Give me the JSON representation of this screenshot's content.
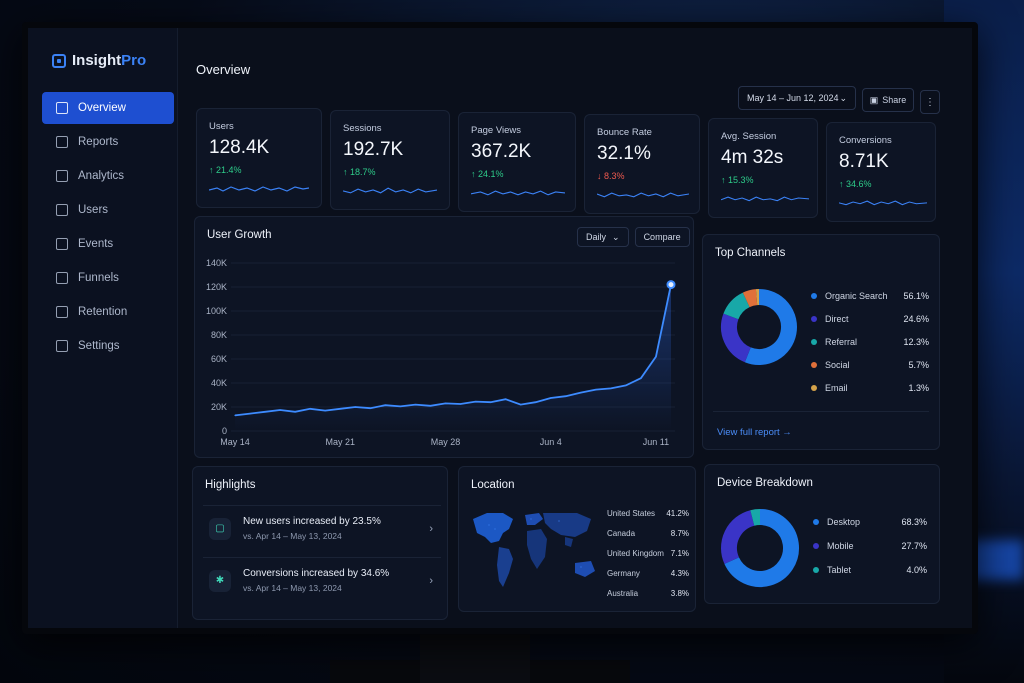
{
  "app": {
    "name_part1": "Insight",
    "name_part2": "Pro"
  },
  "sidebar": {
    "items": [
      {
        "label": "Overview",
        "icon": "home-icon",
        "active": true
      },
      {
        "label": "Reports",
        "icon": "reports-icon"
      },
      {
        "label": "Analytics",
        "icon": "analytics-icon"
      },
      {
        "label": "Users",
        "icon": "users-icon"
      },
      {
        "label": "Events",
        "icon": "events-icon"
      },
      {
        "label": "Funnels",
        "icon": "funnel-icon"
      },
      {
        "label": "Retention",
        "icon": "retention-icon"
      },
      {
        "label": "Settings",
        "icon": "gear-icon"
      }
    ]
  },
  "header": {
    "title": "Overview",
    "date_range": "May 14 – Jun 12, 2024",
    "share_label": "Share"
  },
  "kpis": [
    {
      "label": "Users",
      "value": "128.4K",
      "delta": "↑ 21.4%",
      "trend": "up"
    },
    {
      "label": "Sessions",
      "value": "192.7K",
      "delta": "↑ 18.7%",
      "trend": "up"
    },
    {
      "label": "Page Views",
      "value": "367.2K",
      "delta": "↑ 24.1%",
      "trend": "up"
    },
    {
      "label": "Bounce Rate",
      "value": "32.1%",
      "delta": "↓ 8.3%",
      "trend": "down"
    },
    {
      "label": "Avg. Session",
      "value": "4m 32s",
      "delta": "↑ 15.3%",
      "trend": "up"
    },
    {
      "label": "Conversions",
      "value": "8.71K",
      "delta": "↑ 34.6%",
      "trend": "up"
    }
  ],
  "user_growth": {
    "title": "User Growth",
    "period_select": "Daily",
    "compare_label": "Compare"
  },
  "chart_data": {
    "type": "line",
    "title": "User Growth",
    "y_ticks": [
      "0",
      "20K",
      "40K",
      "60K",
      "80K",
      "100K",
      "120K",
      "140K"
    ],
    "x_ticks": [
      "May 14",
      "May 21",
      "May 28",
      "Jun 4",
      "Jun 11"
    ],
    "ylim": [
      0,
      140000
    ],
    "x": [
      "May 14",
      "May 15",
      "May 16",
      "May 17",
      "May 18",
      "May 19",
      "May 20",
      "May 21",
      "May 22",
      "May 23",
      "May 24",
      "May 25",
      "May 26",
      "May 27",
      "May 28",
      "May 29",
      "May 30",
      "May 31",
      "Jun 1",
      "Jun 2",
      "Jun 3",
      "Jun 4",
      "Jun 5",
      "Jun 6",
      "Jun 7",
      "Jun 8",
      "Jun 9",
      "Jun 10",
      "Jun 11",
      "Jun 12"
    ],
    "series": [
      {
        "values": [
          13000,
          14500,
          16000,
          17500,
          16000,
          18500,
          17000,
          18500,
          20000,
          19000,
          21500,
          20500,
          22000,
          21000,
          23000,
          22500,
          24500,
          24000,
          26500,
          22000,
          24000,
          27500,
          29000,
          32000,
          34500,
          35500,
          38000,
          44000,
          62000,
          122000
        ]
      }
    ]
  },
  "top_channels": {
    "title": "Top Channels",
    "items": [
      {
        "label": "Organic Search",
        "pct": "56.1%",
        "color": "#1f7ae8"
      },
      {
        "label": "Direct",
        "pct": "24.6%",
        "color": "#3a34c7"
      },
      {
        "label": "Referral",
        "pct": "12.3%",
        "color": "#18a8a8"
      },
      {
        "label": "Social",
        "pct": "5.7%",
        "color": "#e0703a"
      },
      {
        "label": "Email",
        "pct": "1.3%",
        "color": "#d4a24a"
      }
    ],
    "link": "View full report →"
  },
  "highlights": {
    "title": "Highlights",
    "items": [
      {
        "title": "New users increased by 23.5%",
        "sub": "vs. Apr 14 – May 13, 2024"
      },
      {
        "title": "Conversions increased by 34.6%",
        "sub": "vs. Apr 14 – May 13, 2024"
      }
    ]
  },
  "location": {
    "title": "Location",
    "items": [
      {
        "label": "United States",
        "pct": "41.2%"
      },
      {
        "label": "Canada",
        "pct": "8.7%"
      },
      {
        "label": "United Kingdom",
        "pct": "7.1%"
      },
      {
        "label": "Germany",
        "pct": "4.3%"
      },
      {
        "label": "Australia",
        "pct": "3.8%"
      }
    ]
  },
  "device": {
    "title": "Device Breakdown",
    "items": [
      {
        "label": "Desktop",
        "pct": "68.3%",
        "color": "#1f7ae8"
      },
      {
        "label": "Mobile",
        "pct": "27.7%",
        "color": "#3a34c7"
      },
      {
        "label": "Tablet",
        "pct": "4.0%",
        "color": "#18a8a8"
      }
    ]
  }
}
